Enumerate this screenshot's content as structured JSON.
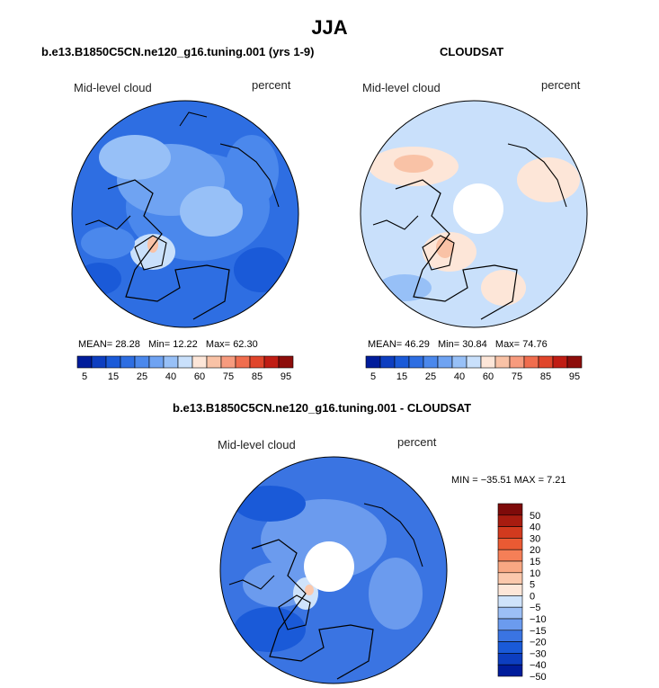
{
  "title": "JJA",
  "colors": {
    "mid_ramp": [
      "#001c9b",
      "#0d3ec0",
      "#1a5ad8",
      "#2e6ee2",
      "#4b88ec",
      "#6fa3f2",
      "#97c0f7",
      "#c9e0fb",
      "#fde6d8",
      "#f9c2a6",
      "#f79b7e",
      "#f06d4e",
      "#e0452b",
      "#c01d14",
      "#8d0d0b"
    ],
    "diff_ramp": [
      "#001c9b",
      "#0d3ec0",
      "#1a5ad8",
      "#3a74e2",
      "#6b9bee",
      "#9cbff6",
      "#cfe3fb",
      "#fde6d8",
      "#fbc8ac",
      "#f9a883",
      "#f57f57",
      "#ea5a33",
      "#d23a1e",
      "#a81c10",
      "#7e0b0a"
    ]
  },
  "chart_data": [
    {
      "type": "heatmap",
      "name": "model",
      "title": "b.e13.B1850C5CN.ne120_g16.tuning.001 (yrs 1-9)",
      "left_label": "Mid-level cloud",
      "right_label": "percent",
      "mean_label": "MEAN=",
      "mean": "28.28",
      "min_label": "Min=",
      "min": "12.22",
      "max_label": "Max=",
      "max": "62.30",
      "colorbar_ticks": [
        "5",
        "15",
        "25",
        "40",
        "60",
        "75",
        "85",
        "95"
      ]
    },
    {
      "type": "heatmap",
      "name": "cloudsat",
      "title": "CLOUDSAT",
      "left_label": "Mid-level cloud",
      "right_label": "percent",
      "mean_label": "MEAN=",
      "mean": "46.29",
      "min_label": "Min=",
      "min": "30.84",
      "max_label": "Max=",
      "max": "74.76",
      "colorbar_ticks": [
        "5",
        "15",
        "25",
        "40",
        "60",
        "75",
        "85",
        "95"
      ]
    },
    {
      "type": "heatmap",
      "name": "difference",
      "title": "b.e13.B1850C5CN.ne120_g16.tuning.001 - CLOUDSAT",
      "left_label": "Mid-level cloud",
      "right_label": "percent",
      "minmax_text": "MIN = −35.51 MAX =    7.21",
      "colorbar_ticks": [
        "50",
        "40",
        "30",
        "20",
        "15",
        "10",
        "5",
        "0",
        "−5",
        "−10",
        "−15",
        "−20",
        "−30",
        "−40",
        "−50"
      ]
    }
  ]
}
